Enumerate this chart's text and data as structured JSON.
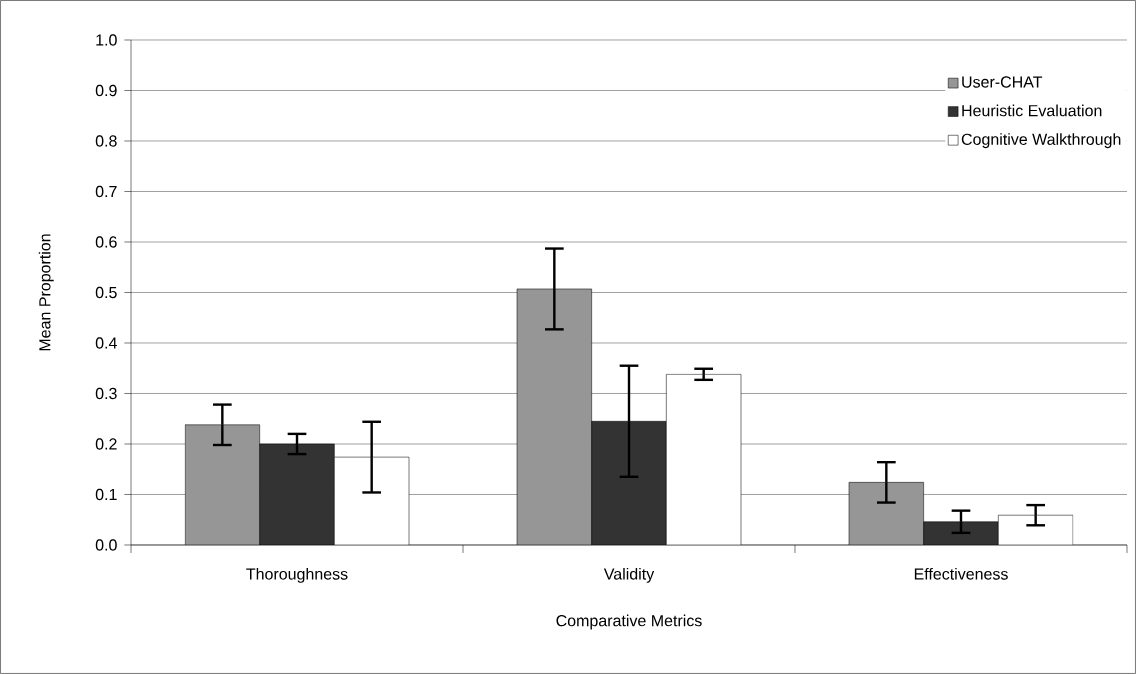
{
  "chart_data": {
    "type": "bar",
    "xlabel": "Comparative Metrics",
    "ylabel": "Mean Proportion",
    "categories": [
      "Thoroughness",
      "Validity",
      "Effectiveness"
    ],
    "series": [
      {
        "name": "User-CHAT",
        "color": "#969696",
        "values": [
          0.238,
          0.507,
          0.124
        ],
        "errors": [
          0.04,
          0.08,
          0.04
        ]
      },
      {
        "name": "Heuristic Evaluation",
        "color": "#333333",
        "values": [
          0.2,
          0.245,
          0.046
        ],
        "errors": [
          0.02,
          0.11,
          0.022
        ]
      },
      {
        "name": "Cognitive Walkthrough",
        "color": "#ffffff",
        "values": [
          0.174,
          0.338,
          0.059
        ],
        "errors": [
          0.07,
          0.011,
          0.02
        ]
      }
    ],
    "ylim": [
      0,
      1
    ],
    "yticks": [
      {
        "value": 0,
        "label": "0.0"
      },
      {
        "value": 0.1,
        "label": "0.1"
      },
      {
        "value": 0.2,
        "label": "0.2"
      },
      {
        "value": 0.3,
        "label": "0.3"
      },
      {
        "value": 0.4,
        "label": "0.4"
      },
      {
        "value": 0.5,
        "label": "0.5"
      },
      {
        "value": 0.6,
        "label": "0.6"
      },
      {
        "value": 0.7,
        "label": "0.7"
      },
      {
        "value": 0.8,
        "label": "0.8"
      },
      {
        "value": 0.9,
        "label": "0.9"
      },
      {
        "value": 1,
        "label": "1.0"
      }
    ],
    "grid": "y",
    "legend": "top right"
  }
}
